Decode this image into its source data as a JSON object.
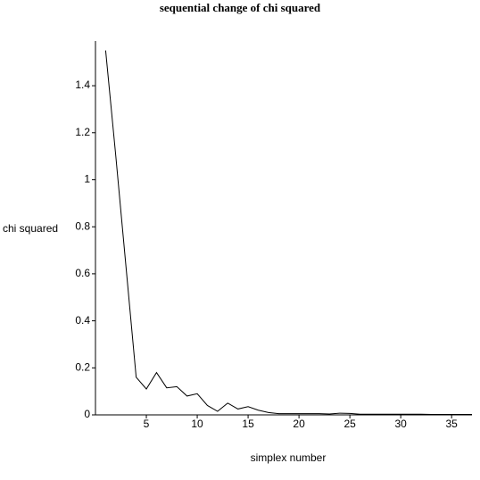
{
  "chart_data": {
    "type": "line",
    "title": "sequential change of chi squared",
    "x_label": "simplex number",
    "y_label": "chi squared",
    "x": [
      1,
      2,
      3,
      4,
      5,
      6,
      7,
      8,
      9,
      10,
      11,
      12,
      13,
      14,
      15,
      16,
      17,
      18,
      19,
      20,
      21,
      22,
      23,
      24,
      25,
      26,
      27,
      28,
      29,
      30,
      31,
      32,
      33,
      34,
      35,
      36,
      37
    ],
    "series": [
      {
        "color": "#000000",
        "values": [
          1.55,
          1.1,
          0.63,
          0.16,
          0.11,
          0.18,
          0.115,
          0.12,
          0.08,
          0.09,
          0.04,
          0.015,
          0.05,
          0.025,
          0.035,
          0.02,
          0.01,
          0.005,
          0.005,
          0.005,
          0.005,
          0.005,
          0.004,
          0.007,
          0.006,
          0.003,
          0.003,
          0.003,
          0.003,
          0.003,
          0.003,
          0.003,
          0.002,
          0.002,
          0.002,
          0.002,
          0.002
        ]
      }
    ],
    "xlim": [
      0,
      37
    ],
    "ylim": [
      0,
      1.59
    ],
    "xticks": [
      5,
      10,
      15,
      20,
      25,
      30,
      35
    ],
    "yticks": [
      0,
      0.2,
      0.4,
      0.6,
      0.8,
      1,
      1.2,
      1.4
    ]
  }
}
